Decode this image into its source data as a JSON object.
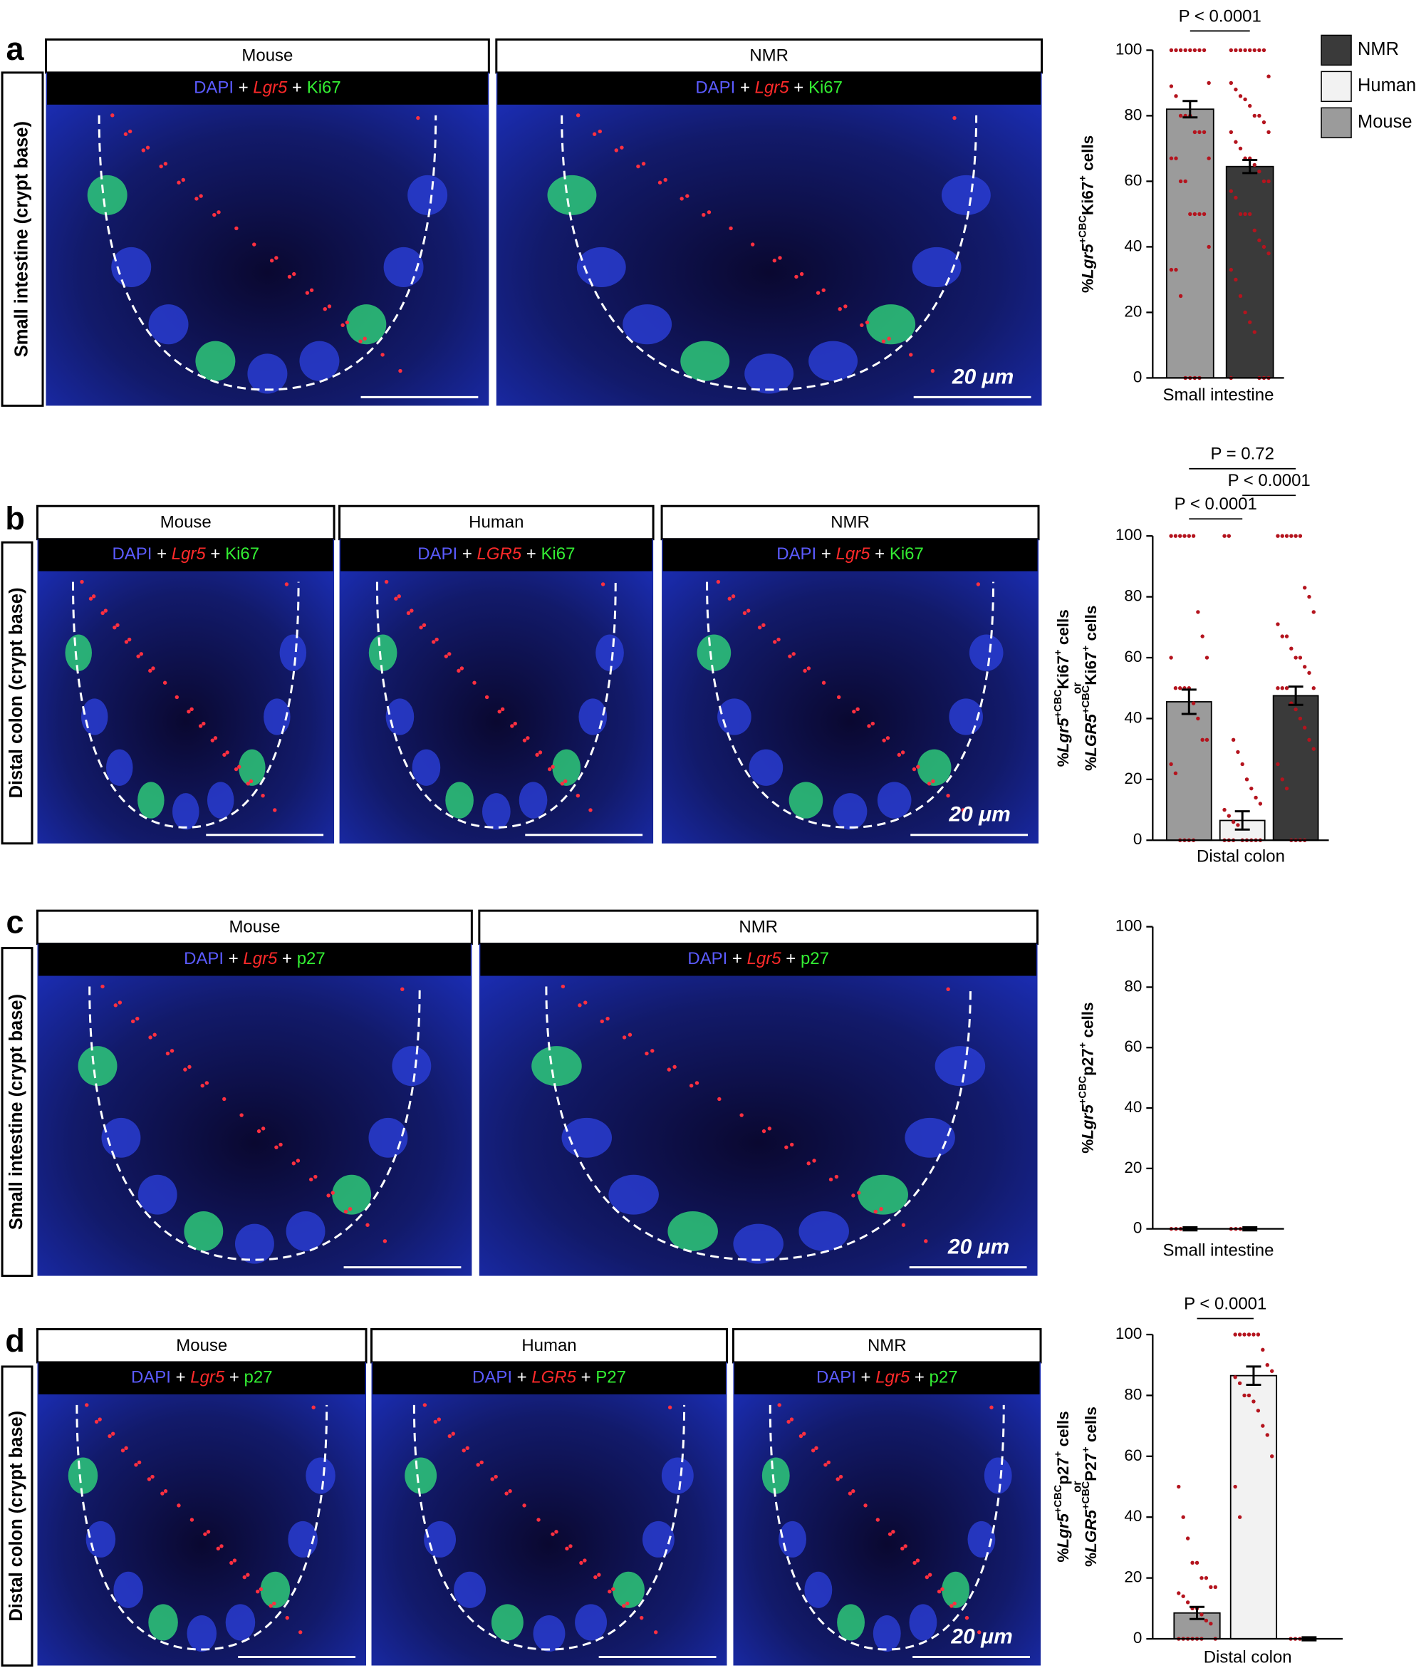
{
  "figure_panels": [
    {
      "letter": "a",
      "side_label": "Small intestine (crypt base)",
      "images": [
        {
          "header": "Mouse",
          "stain": [
            {
              "text": "DAPI",
              "color": "#5b5bff"
            },
            {
              "text": " + ",
              "color": "#ffffff"
            },
            {
              "text": "Lgr5",
              "color": "#ff2a2a",
              "style": "i"
            },
            {
              "text": " + ",
              "color": "#ffffff"
            },
            {
              "text": "Ki67",
              "color": "#33ee33"
            }
          ]
        },
        {
          "header": "NMR",
          "stain": [
            {
              "text": "DAPI",
              "color": "#5b5bff"
            },
            {
              "text": " + ",
              "color": "#ffffff"
            },
            {
              "text": "Lgr5",
              "color": "#ff2a2a",
              "style": "i"
            },
            {
              "text": " + ",
              "color": "#ffffff"
            },
            {
              "text": "Ki67",
              "color": "#33ee33"
            }
          ],
          "scale_label": "20 μm"
        }
      ]
    },
    {
      "letter": "b",
      "side_label": "Distal colon (crypt base)",
      "images": [
        {
          "header": "Mouse",
          "stain": [
            {
              "text": "DAPI",
              "color": "#5b5bff"
            },
            {
              "text": " + ",
              "color": "#ffffff"
            },
            {
              "text": "Lgr5",
              "color": "#ff2a2a",
              "style": "i"
            },
            {
              "text": " + ",
              "color": "#ffffff"
            },
            {
              "text": "Ki67",
              "color": "#33ee33"
            }
          ]
        },
        {
          "header": "Human",
          "stain": [
            {
              "text": "DAPI",
              "color": "#5b5bff"
            },
            {
              "text": " + ",
              "color": "#ffffff"
            },
            {
              "text": "LGR5",
              "color": "#ff2a2a",
              "style": "i"
            },
            {
              "text": " + ",
              "color": "#ffffff"
            },
            {
              "text": "Ki67",
              "color": "#33ee33"
            }
          ]
        },
        {
          "header": "NMR",
          "stain": [
            {
              "text": "DAPI",
              "color": "#5b5bff"
            },
            {
              "text": " + ",
              "color": "#ffffff"
            },
            {
              "text": "Lgr5",
              "color": "#ff2a2a",
              "style": "i"
            },
            {
              "text": " + ",
              "color": "#ffffff"
            },
            {
              "text": "Ki67",
              "color": "#33ee33"
            }
          ],
          "scale_label": "20 μm"
        }
      ]
    },
    {
      "letter": "c",
      "side_label": "Small intestine (crypt base)",
      "images": [
        {
          "header": "Mouse",
          "stain": [
            {
              "text": "DAPI",
              "color": "#5b5bff"
            },
            {
              "text": " + ",
              "color": "#ffffff"
            },
            {
              "text": "Lgr5",
              "color": "#ff2a2a",
              "style": "i"
            },
            {
              "text": " + ",
              "color": "#ffffff"
            },
            {
              "text": "p27",
              "color": "#33ee33"
            }
          ]
        },
        {
          "header": "NMR",
          "stain": [
            {
              "text": "DAPI",
              "color": "#5b5bff"
            },
            {
              "text": " + ",
              "color": "#ffffff"
            },
            {
              "text": "Lgr5",
              "color": "#ff2a2a",
              "style": "i"
            },
            {
              "text": " + ",
              "color": "#ffffff"
            },
            {
              "text": "p27",
              "color": "#33ee33"
            }
          ],
          "scale_label": "20 μm"
        }
      ]
    },
    {
      "letter": "d",
      "side_label": "Distal colon (crypt base)",
      "images": [
        {
          "header": "Mouse",
          "stain": [
            {
              "text": "DAPI",
              "color": "#5b5bff"
            },
            {
              "text": " + ",
              "color": "#ffffff"
            },
            {
              "text": "Lgr5",
              "color": "#ff2a2a",
              "style": "i"
            },
            {
              "text": " + ",
              "color": "#ffffff"
            },
            {
              "text": "p27",
              "color": "#33ee33"
            }
          ]
        },
        {
          "header": "Human",
          "stain": [
            {
              "text": "DAPI",
              "color": "#5b5bff"
            },
            {
              "text": " + ",
              "color": "#ffffff"
            },
            {
              "text": "LGR5",
              "color": "#ff2a2a",
              "style": "i"
            },
            {
              "text": " + ",
              "color": "#ffffff"
            },
            {
              "text": "P27",
              "color": "#33ee33"
            }
          ]
        },
        {
          "header": "NMR",
          "stain": [
            {
              "text": "DAPI",
              "color": "#5b5bff"
            },
            {
              "text": " + ",
              "color": "#ffffff"
            },
            {
              "text": "Lgr5",
              "color": "#ff2a2a",
              "style": "i"
            },
            {
              "text": " + ",
              "color": "#ffffff"
            },
            {
              "text": "p27",
              "color": "#33ee33"
            }
          ],
          "scale_label": "20 μm"
        }
      ]
    }
  ],
  "chart_data": [
    {
      "type": "bar",
      "xlabel": "Small intestine",
      "ylabel": [
        [
          {
            "text": "%",
            "style": "n"
          },
          {
            "text": "Lgr5",
            "style": "i"
          },
          {
            "text": "+CBC",
            "style": "sup"
          },
          {
            "text": "Ki67",
            "style": "n"
          },
          {
            "text": "+",
            "style": "sup"
          },
          {
            "text": " cells",
            "style": "n"
          }
        ]
      ],
      "categories": [
        "Mouse",
        "NMR"
      ],
      "colors": [
        "#9b9b9b",
        "#3a3a3a"
      ],
      "values": [
        82,
        64.5
      ],
      "errors": [
        2.5,
        2
      ],
      "points": [
        [
          100,
          100,
          100,
          100,
          100,
          100,
          100,
          100,
          90,
          89,
          86,
          80,
          80,
          80,
          75,
          75,
          75,
          67,
          67,
          67,
          60,
          60,
          50,
          50,
          50,
          50,
          40,
          33,
          33,
          25,
          0,
          0,
          0,
          0
        ],
        [
          100,
          100,
          100,
          100,
          100,
          100,
          100,
          100,
          92,
          90,
          88,
          86,
          85,
          83,
          80,
          80,
          78,
          75,
          75,
          72,
          70,
          67,
          67,
          65,
          63,
          60,
          60,
          57,
          55,
          50,
          50,
          50,
          45,
          42,
          40,
          38,
          33,
          30,
          25,
          20,
          17,
          14,
          0,
          0,
          0,
          0
        ]
      ],
      "point_color": "#b4141e",
      "ylim": [
        0,
        100
      ],
      "yticks": [
        0,
        20,
        40,
        60,
        80,
        100
      ],
      "annotations": [
        {
          "text": "P < 0.0001",
          "between": [
            "Mouse",
            "NMR"
          ]
        }
      ],
      "legend": [
        {
          "name": "NMR",
          "color": "#3a3a3a"
        },
        {
          "name": "Human",
          "color": "#f2f2f2"
        },
        {
          "name": "Mouse",
          "color": "#9b9b9b"
        }
      ]
    },
    {
      "type": "bar",
      "xlabel": "Distal colon",
      "ylabel": [
        [
          {
            "text": "%",
            "style": "n"
          },
          {
            "text": "Lgr5",
            "style": "i"
          },
          {
            "text": "+CBC",
            "style": "sup"
          },
          {
            "text": "Ki67",
            "style": "n"
          },
          {
            "text": "+",
            "style": "sup"
          },
          {
            "text": " cells",
            "style": "n"
          }
        ],
        [
          {
            "text": "or",
            "style": "n"
          }
        ],
        [
          {
            "text": "%",
            "style": "n"
          },
          {
            "text": "LGR5",
            "style": "i"
          },
          {
            "text": "+CBC",
            "style": "sup"
          },
          {
            "text": "Ki67",
            "style": "n"
          },
          {
            "text": "+",
            "style": "sup"
          },
          {
            "text": " cells",
            "style": "n"
          }
        ]
      ],
      "categories": [
        "Mouse",
        "Human",
        "NMR"
      ],
      "colors": [
        "#9b9b9b",
        "#f2f2f2",
        "#3a3a3a"
      ],
      "values": [
        45.5,
        6.5,
        47.5
      ],
      "errors": [
        4,
        3,
        3
      ],
      "points": [
        [
          100,
          100,
          100,
          100,
          100,
          100,
          75,
          67,
          60,
          60,
          50,
          50,
          50,
          50,
          45,
          40,
          33,
          33,
          25,
          22,
          0,
          0,
          0,
          0
        ],
        [
          100,
          100,
          33,
          29,
          25,
          20,
          17,
          14,
          12,
          10,
          8,
          6,
          5,
          0,
          0,
          0,
          0,
          0,
          0,
          0,
          0
        ],
        [
          100,
          100,
          100,
          100,
          100,
          100,
          83,
          80,
          75,
          71,
          67,
          67,
          63,
          60,
          60,
          57,
          55,
          50,
          50,
          50,
          50,
          45,
          43,
          40,
          37,
          33,
          30,
          25,
          20,
          17,
          0,
          0,
          0,
          0
        ]
      ],
      "point_color": "#b4141e",
      "ylim": [
        0,
        100
      ],
      "yticks": [
        0,
        20,
        40,
        60,
        80,
        100
      ],
      "annotations": [
        {
          "text": "P < 0.0001",
          "between": [
            "Mouse",
            "Human"
          ]
        },
        {
          "text": "P = 0.72",
          "between": [
            "Mouse",
            "NMR"
          ]
        },
        {
          "text": "P < 0.0001",
          "between": [
            "Human",
            "NMR"
          ]
        }
      ]
    },
    {
      "type": "bar",
      "xlabel": "Small intestine",
      "ylabel": [
        [
          {
            "text": "%",
            "style": "n"
          },
          {
            "text": "Lgr5",
            "style": "i"
          },
          {
            "text": "+CBC",
            "style": "sup"
          },
          {
            "text": "p27",
            "style": "n"
          },
          {
            "text": "+",
            "style": "sup"
          },
          {
            "text": " cells",
            "style": "n"
          }
        ]
      ],
      "categories": [
        "Mouse",
        "NMR"
      ],
      "colors": [
        "#9b9b9b",
        "#3a3a3a"
      ],
      "values": [
        0,
        0
      ],
      "errors": [
        0.5,
        0.5
      ],
      "points": [
        [
          0,
          0,
          0,
          0,
          0,
          0
        ],
        [
          0,
          0,
          0,
          0,
          0,
          0
        ]
      ],
      "point_color": "#b4141e",
      "ylim": [
        0,
        100
      ],
      "yticks": [
        0,
        20,
        40,
        60,
        80,
        100
      ]
    },
    {
      "type": "bar",
      "xlabel": "Distal colon",
      "ylabel": [
        [
          {
            "text": "%",
            "style": "n"
          },
          {
            "text": "Lgr5",
            "style": "i"
          },
          {
            "text": "+CBC",
            "style": "sup"
          },
          {
            "text": "p27",
            "style": "n"
          },
          {
            "text": "+",
            "style": "sup"
          },
          {
            "text": " cells",
            "style": "n"
          }
        ],
        [
          {
            "text": "or",
            "style": "n"
          }
        ],
        [
          {
            "text": "%",
            "style": "n"
          },
          {
            "text": "LGR5",
            "style": "i"
          },
          {
            "text": "+CBC",
            "style": "sup"
          },
          {
            "text": "P27",
            "style": "n"
          },
          {
            "text": "+",
            "style": "sup"
          },
          {
            "text": " cells",
            "style": "n"
          }
        ]
      ],
      "categories": [
        "Mouse",
        "Human",
        "NMR"
      ],
      "colors": [
        "#9b9b9b",
        "#f2f2f2",
        "#3a3a3a"
      ],
      "values": [
        8.5,
        86.5,
        0
      ],
      "errors": [
        2,
        3,
        0.5
      ],
      "points": [
        [
          50,
          40,
          33,
          25,
          25,
          20,
          20,
          17,
          17,
          15,
          14,
          12,
          10,
          10,
          8,
          6,
          5,
          0,
          0,
          0,
          0,
          0,
          0,
          0
        ],
        [
          100,
          100,
          100,
          100,
          100,
          100,
          95,
          90,
          88,
          86,
          84,
          80,
          80,
          78,
          75,
          70,
          67,
          60,
          50,
          40
        ],
        [
          0,
          0,
          0,
          0,
          0
        ]
      ],
      "point_color": "#b4141e",
      "ylim": [
        0,
        100
      ],
      "yticks": [
        0,
        20,
        40,
        60,
        80,
        100
      ],
      "annotations": [
        {
          "text": "P < 0.0001",
          "between": [
            "Mouse",
            "Human"
          ]
        }
      ]
    }
  ]
}
